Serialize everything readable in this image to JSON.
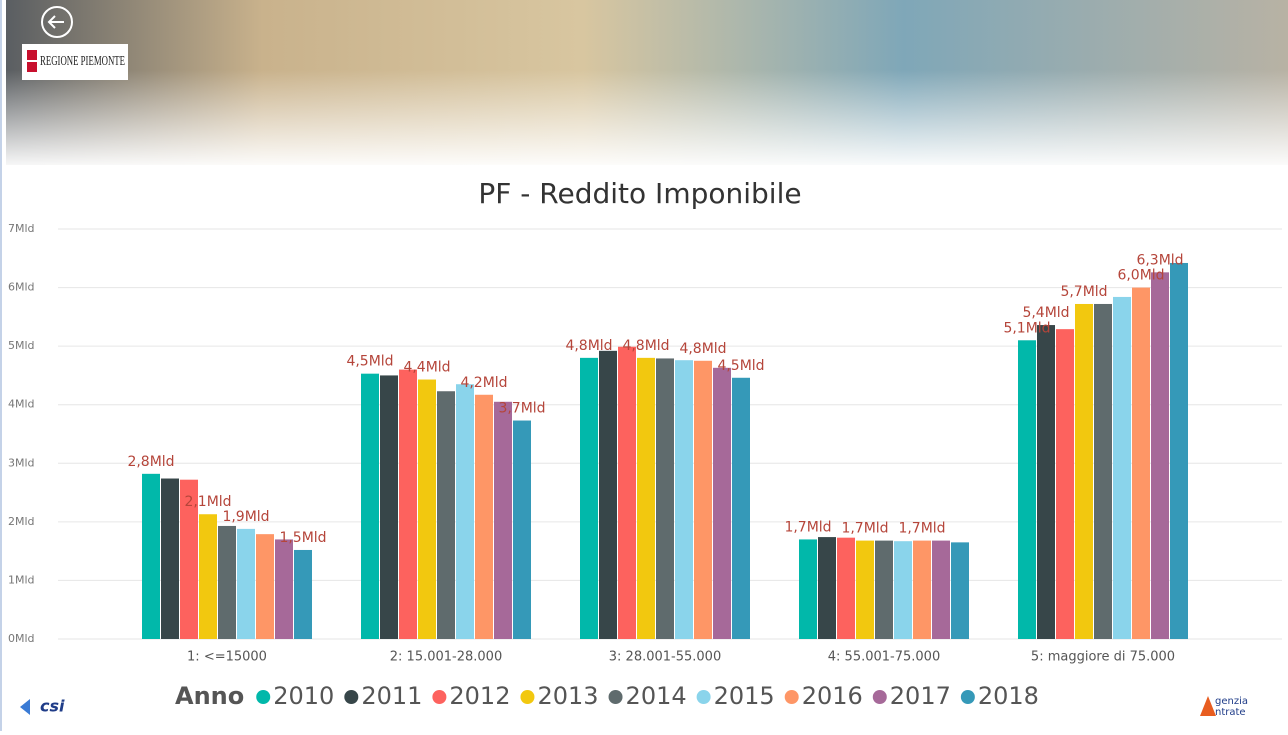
{
  "header": {
    "logo": "REGIONE PIEMONTE"
  },
  "footer": {
    "left_logo": "csi",
    "right_logo_top": "genzia",
    "right_logo_bottom": "ntrate"
  },
  "chart_data": {
    "type": "bar",
    "title": "PF - Reddito Imponibile",
    "categories": [
      "1: <=15000",
      "2: 15.001-28.000",
      "3: 28.001-55.000",
      "4: 55.001-75.000",
      "5: maggiore di 75.000"
    ],
    "series": [
      {
        "name": "2010",
        "color": "#01b8aa",
        "values": [
          2.82,
          4.53,
          4.8,
          1.7,
          5.1
        ],
        "value_labels": [
          "2,8Mld",
          "4,5Mld",
          "4,8Mld",
          "1,7Mld",
          "5,1Mld"
        ]
      },
      {
        "name": "2011",
        "color": "#374649",
        "values": [
          2.74,
          4.5,
          4.92,
          1.74,
          5.36
        ],
        "value_labels": [
          null,
          null,
          null,
          null,
          "5,4Mld"
        ]
      },
      {
        "name": "2012",
        "color": "#fd625e",
        "values": [
          2.72,
          4.6,
          4.99,
          1.73,
          5.29
        ],
        "value_labels": [
          null,
          null,
          null,
          null,
          null
        ]
      },
      {
        "name": "2013",
        "color": "#f2c80f",
        "values": [
          2.13,
          4.43,
          4.8,
          1.68,
          5.72
        ],
        "value_labels": [
          "2,1Mld",
          "4,4Mld",
          "4,8Mld",
          "1,7Mld",
          "5,7Mld"
        ]
      },
      {
        "name": "2014",
        "color": "#5f6b6d",
        "values": [
          1.93,
          4.23,
          4.79,
          1.68,
          5.72
        ],
        "value_labels": [
          null,
          null,
          null,
          null,
          null
        ]
      },
      {
        "name": "2015",
        "color": "#8ad4eb",
        "values": [
          1.88,
          4.35,
          4.76,
          1.67,
          5.84
        ],
        "value_labels": [
          "1,9Mld",
          null,
          null,
          null,
          null
        ]
      },
      {
        "name": "2016",
        "color": "#fe9666",
        "values": [
          1.79,
          4.17,
          4.75,
          1.68,
          6.0
        ],
        "value_labels": [
          null,
          "4,2Mld",
          "4,8Mld",
          "1,7Mld",
          "6,0Mld"
        ]
      },
      {
        "name": "2017",
        "color": "#a66999",
        "values": [
          1.7,
          4.05,
          4.63,
          1.68,
          6.26
        ],
        "value_labels": [
          null,
          null,
          null,
          null,
          "6,3Mld"
        ]
      },
      {
        "name": "2018",
        "color": "#3599b8",
        "values": [
          1.52,
          3.73,
          4.46,
          1.65,
          6.42
        ],
        "value_labels": [
          "1,5Mld",
          "3,7Mld",
          "4,5Mld",
          null,
          null
        ]
      }
    ],
    "ylim": [
      0,
      7
    ],
    "yticks": [
      {
        "value": 0,
        "label": "0Mld"
      },
      {
        "value": 1,
        "label": "1Mld"
      },
      {
        "value": 2,
        "label": "2Mld"
      },
      {
        "value": 3,
        "label": "3Mld"
      },
      {
        "value": 4,
        "label": "4Mld"
      },
      {
        "value": 5,
        "label": "5Mld"
      },
      {
        "value": 6,
        "label": "6Mld"
      },
      {
        "value": 7,
        "label": "7Mld"
      }
    ],
    "grid": true,
    "legend_title": "Anno",
    "legend_position": "bottom"
  }
}
